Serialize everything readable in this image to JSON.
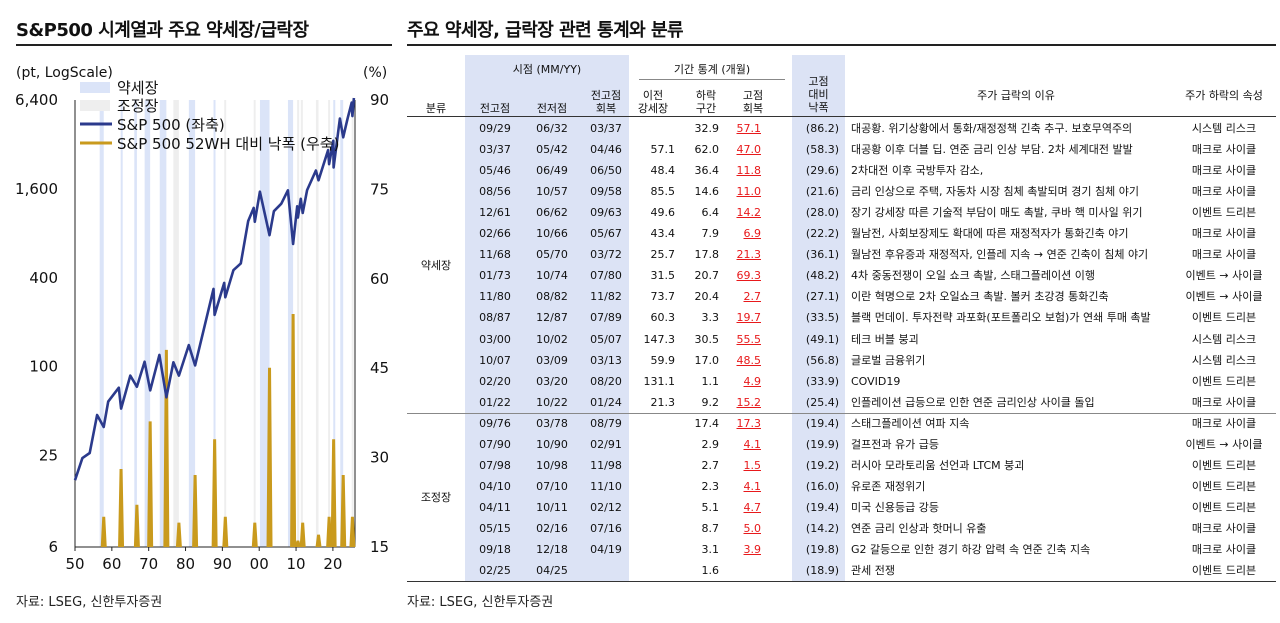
{
  "left_title": "S&P500 시계열과 주요 약세장/급락장",
  "right_title": "주요 약세장, 급락장 관련 통계와 분류",
  "source_left": "자료: LSEG, 신한투자증권",
  "source_right": "자료: LSEG, 신한투자증권",
  "colors": {
    "sp500": "#2b3a8c",
    "drawdown": "#c99a1d",
    "bear": "#dbe4f8",
    "correction": "#eeeeee",
    "shade": "#dce3f5",
    "red": "#e8191b"
  },
  "chart_data": {
    "type": "line",
    "left_axis_label": "(pt, LogScale)",
    "right_axis_label": "(%)",
    "left_ticks": [
      "6,400",
      "1,600",
      "400",
      "100",
      "25",
      "6"
    ],
    "right_ticks": [
      "90",
      "75",
      "60",
      "45",
      "30",
      "15"
    ],
    "x_ticks": [
      "50",
      "60",
      "70",
      "80",
      "90",
      "00",
      "10",
      "20"
    ],
    "xlim": [
      1950,
      2026
    ],
    "left_scale": "log",
    "left_range": [
      6,
      6400
    ],
    "right_range": [
      15,
      90
    ],
    "legend": [
      "약세장",
      "조정장",
      "S&P 500 (좌축)",
      "S&P 500 52WH 대비 낙폭 (우축)"
    ],
    "legend_position": "top-left",
    "bear_periods": [
      [
        1956.7,
        1957.8
      ],
      [
        1962.4,
        1962.8
      ],
      [
        1966.1,
        1966.8
      ],
      [
        1968.9,
        1970.4
      ],
      [
        1973.0,
        1974.8
      ],
      [
        1980.9,
        1982.6
      ],
      [
        1987.6,
        1987.9
      ],
      [
        2000.2,
        2002.8
      ],
      [
        2007.8,
        2009.2
      ],
      [
        2020.1,
        2020.3
      ],
      [
        2022.0,
        2022.8
      ]
    ],
    "correction_periods": [
      [
        1976.7,
        1978.2
      ],
      [
        1990.5,
        1990.8
      ],
      [
        1998.5,
        1998.8
      ],
      [
        2010.3,
        2010.5
      ],
      [
        2011.3,
        2011.8
      ],
      [
        2015.4,
        2016.1
      ],
      [
        2018.7,
        2018.98
      ],
      [
        2025.1,
        2025.3
      ]
    ],
    "sp500": {
      "name": "S&P 500 (좌축)",
      "x": [
        1950,
        1952,
        1954,
        1956,
        1957.8,
        1959,
        1961.9,
        1962.5,
        1965,
        1966.8,
        1968.9,
        1970.4,
        1972.9,
        1974.8,
        1976.7,
        1978.2,
        1980.9,
        1982.6,
        1985,
        1987.6,
        1987.9,
        1990.5,
        1990.8,
        1993,
        1995,
        1997,
        1998.5,
        1998.8,
        2000.2,
        2002.8,
        2004,
        2006,
        2007.8,
        2009.2,
        2010.3,
        2010.5,
        2011.3,
        2011.8,
        2013,
        2015.4,
        2016.1,
        2018.7,
        2018.98,
        2020.1,
        2020.2,
        2021.9,
        2022.8,
        2024,
        2025.1,
        2025.3,
        2025.7
      ],
      "values": [
        17,
        24,
        26,
        47,
        39,
        58,
        72,
        52,
        87,
        73,
        108,
        69,
        120,
        62,
        107,
        87,
        140,
        102,
        180,
        336,
        224,
        369,
        295,
        450,
        500,
        970,
        1190,
        957,
        1530,
        777,
        1130,
        1270,
        1565,
        677,
        1220,
        1022,
        1370,
        1099,
        1570,
        2130,
        1829,
        2930,
        2351,
        3386,
        2237,
        4796,
        3577,
        4800,
        6144,
        4982,
        6600
      ]
    },
    "drawdown": {
      "name": "S&P 500 52WH 대비 낙폭 (우축)",
      "spikes": [
        [
          1957.8,
          20
        ],
        [
          1962.5,
          28
        ],
        [
          1966.8,
          22
        ],
        [
          1970.4,
          36
        ],
        [
          1974.8,
          48
        ],
        [
          1978.2,
          19
        ],
        [
          1982.6,
          27
        ],
        [
          1987.9,
          33
        ],
        [
          1990.8,
          20
        ],
        [
          1998.8,
          19
        ],
        [
          2002.8,
          45
        ],
        [
          2009.2,
          54
        ],
        [
          2010.5,
          16
        ],
        [
          2011.8,
          19
        ],
        [
          2016.1,
          17
        ],
        [
          2018.98,
          20
        ],
        [
          2020.2,
          33
        ],
        [
          2022.8,
          27
        ],
        [
          2025.3,
          20
        ]
      ]
    }
  },
  "table": {
    "group_headers": {
      "points": "시점 (MM/YY)",
      "stats": "기간 통계 (개월)",
      "fixed": "고점\n대비\n낙폭",
      "reason": "주가 급락의 이유",
      "attribute": "주가 하락의 속성"
    },
    "col_headers": {
      "category": "분류",
      "prev_peak": "전고점",
      "trough": "전저점",
      "recovery": "전고점\n회복",
      "prior_bull": "이전\n강세장",
      "decline": "하락\n구간",
      "peak_recovery": "고점\n회복"
    },
    "groups": [
      {
        "name": "약세장",
        "rows": [
          [
            "09/29",
            "06/32",
            "03/37",
            "",
            "32.9",
            "57.1",
            "(86.2)",
            "대공황. 위기상황에서 통화/재정정책 긴축 추구. 보호무역주의",
            "시스템 리스크"
          ],
          [
            "03/37",
            "05/42",
            "04/46",
            "57.1",
            "62.0",
            "47.0",
            "(58.3)",
            "대공황 이후 더블 딥. 연준 금리 인상 부담. 2차 세계대전 발발",
            "매크로 사이클"
          ],
          [
            "05/46",
            "06/49",
            "06/50",
            "48.4",
            "36.4",
            "11.8",
            "(29.6)",
            "2차대전 이후 국방투자 감소,",
            "매크로 사이클"
          ],
          [
            "08/56",
            "10/57",
            "09/58",
            "85.5",
            "14.6",
            "11.0",
            "(21.6)",
            "금리 인상으로 주택, 자동차 시장 침체 촉발되며 경기 침체 야기",
            "매크로 사이클"
          ],
          [
            "12/61",
            "06/62",
            "09/63",
            "49.6",
            "6.4",
            "14.2",
            "(28.0)",
            "장기 강세장 따른 기술적 부담이 매도 촉발, 쿠바 핵 미사일 위기",
            "이벤트 드리븐"
          ],
          [
            "02/66",
            "10/66",
            "05/67",
            "43.4",
            "7.9",
            "6.9",
            "(22.2)",
            "월남전, 사회보장제도 확대에 따른 재정적자가 통화긴축 야기",
            "매크로 사이클"
          ],
          [
            "11/68",
            "05/70",
            "03/72",
            "25.7",
            "17.8",
            "21.3",
            "(36.1)",
            "월남전 후유증과 재정적자, 인플레 지속 → 연준 긴축이 침체 야기",
            "매크로 사이클"
          ],
          [
            "01/73",
            "10/74",
            "07/80",
            "31.5",
            "20.7",
            "69.3",
            "(48.2)",
            "4차 중동전쟁이 오일 쇼크 촉발, 스태그플레이션 이행",
            "이벤트 → 사이클"
          ],
          [
            "11/80",
            "08/82",
            "11/82",
            "73.7",
            "20.4",
            "2.7",
            "(27.1)",
            "이란 혁명으로 2차 오일쇼크 촉발. 볼커 초강경 통화긴축",
            "이벤트 → 사이클"
          ],
          [
            "08/87",
            "12/87",
            "07/89",
            "60.3",
            "3.3",
            "19.7",
            "(33.5)",
            "블랙 먼데이. 투자전략 과포화(포트폴리오 보험)가 연쇄 투매 촉발",
            "이벤트 드리븐"
          ],
          [
            "03/00",
            "10/02",
            "05/07",
            "147.3",
            "30.5",
            "55.5",
            "(49.1)",
            "테크 버블 붕괴",
            "시스템 리스크"
          ],
          [
            "10/07",
            "03/09",
            "03/13",
            "59.9",
            "17.0",
            "48.5",
            "(56.8)",
            "글로벌 금융위기",
            "시스템 리스크"
          ],
          [
            "02/20",
            "03/20",
            "08/20",
            "131.1",
            "1.1",
            "4.9",
            "(33.9)",
            "COVID19",
            "이벤트 드리븐"
          ],
          [
            "01/22",
            "10/22",
            "01/24",
            "21.3",
            "9.2",
            "15.2",
            "(25.4)",
            "인플레이션 급등으로 인한 연준 금리인상 사이클 돌입",
            "매크로 사이클"
          ]
        ]
      },
      {
        "name": "조정장",
        "rows": [
          [
            "09/76",
            "03/78",
            "08/79",
            "",
            "17.4",
            "17.3",
            "(19.4)",
            "스태그플레이션 여파 지속",
            "매크로 사이클"
          ],
          [
            "07/90",
            "10/90",
            "02/91",
            "",
            "2.9",
            "4.1",
            "(19.9)",
            "걸프전과 유가 급등",
            "이벤트 → 사이클"
          ],
          [
            "07/98",
            "10/98",
            "11/98",
            "",
            "2.7",
            "1.5",
            "(19.2)",
            "러시아 모라토리움 선언과 LTCM 붕괴",
            "이벤트 드리븐"
          ],
          [
            "04/10",
            "07/10",
            "11/10",
            "",
            "2.3",
            "4.1",
            "(16.0)",
            "유로존 재정위기",
            "이벤트 드리븐"
          ],
          [
            "04/11",
            "10/11",
            "02/12",
            "",
            "5.1",
            "4.7",
            "(19.4)",
            "미국 신용등급 강등",
            "이벤트 드리븐"
          ],
          [
            "05/15",
            "02/16",
            "07/16",
            "",
            "8.7",
            "5.0",
            "(14.2)",
            "연준 금리 인상과 핫머니 유출",
            "매크로 사이클"
          ],
          [
            "09/18",
            "12/18",
            "04/19",
            "",
            "3.1",
            "3.9",
            "(19.8)",
            "G2 갈등으로 인한 경기 하강 압력 속 연준 긴축 지속",
            "매크로 사이클"
          ],
          [
            "02/25",
            "04/25",
            "",
            "",
            "1.6",
            "",
            "(18.9)",
            "관세 전쟁",
            "이벤트 드리븐"
          ]
        ]
      }
    ]
  }
}
